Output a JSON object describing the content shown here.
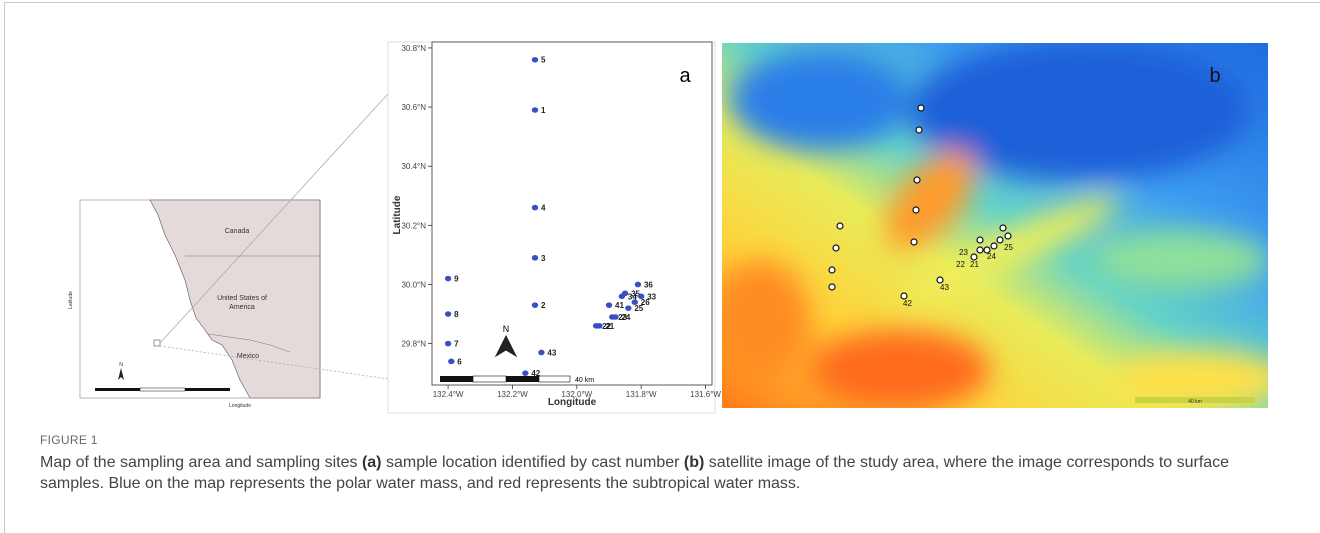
{
  "figure_label": "FIGURE 1",
  "caption": [
    "Map of the sampling area and sampling sites ",
    "(a)",
    " sample location identified by cast number ",
    "(b)",
    " satellite image of the study area, where the image corresponds to surface samples. Blue on the map represents the polar water mass, and red represents the subtropical water mass."
  ],
  "overview_map": {
    "regions": [
      "Canada",
      "United States of",
      "America",
      "Mexico"
    ],
    "x_label": "Longitude",
    "y_label": "Latitude",
    "north": "N"
  },
  "chart_data": {
    "type": "scatter",
    "panel_label": "a",
    "x_label": "Longitude",
    "y_label": "Latitude",
    "color": "#3a4fc4",
    "labels": [
      "5",
      "1",
      "4",
      "3",
      "2",
      "9",
      "8",
      "7",
      "6",
      "42",
      "43",
      "36",
      "34",
      "35",
      "33",
      "26",
      "41",
      "25",
      "24",
      "23",
      "21",
      "22"
    ],
    "x": [
      -132.13,
      -132.13,
      -132.13,
      -132.13,
      -132.13,
      -132.4,
      -132.4,
      -132.4,
      -132.39,
      -132.16,
      -132.11,
      -131.81,
      -131.86,
      -131.85,
      -131.8,
      -131.82,
      -131.9,
      -131.84,
      -131.88,
      -131.89,
      -131.93,
      -131.94
    ],
    "values": [
      30.76,
      30.59,
      30.26,
      30.09,
      29.93,
      30.02,
      29.9,
      29.8,
      29.74,
      29.7,
      29.77,
      30.0,
      29.96,
      29.97,
      29.96,
      29.94,
      29.93,
      29.92,
      29.89,
      29.89,
      29.86,
      29.86
    ],
    "xlim": [
      -132.45,
      -131.58
    ],
    "ylim": [
      29.66,
      30.82
    ],
    "xticks": [
      {
        "value": -132.4,
        "label": "132.4°W"
      },
      {
        "value": -132.2,
        "label": "132.2°W"
      },
      {
        "value": -132.0,
        "label": "132.0°W"
      },
      {
        "value": -131.8,
        "label": "131.8°W"
      },
      {
        "value": -131.6,
        "label": "131.6°W"
      }
    ],
    "yticks": [
      {
        "value": 29.8,
        "label": "29.8°N"
      },
      {
        "value": 30.0,
        "label": "30.0°N"
      },
      {
        "value": 30.2,
        "label": "30.2°N"
      },
      {
        "value": 30.4,
        "label": "30.4°N"
      },
      {
        "value": 30.6,
        "label": "30.6°N"
      },
      {
        "value": 30.8,
        "label": "30.8°N"
      }
    ],
    "north": "N",
    "scale_label": "40 km"
  },
  "panel_b": {
    "label": "b",
    "scale_label": "40 km",
    "sites": [
      "23",
      "22",
      "21",
      "24",
      "25",
      "42",
      "43"
    ]
  }
}
